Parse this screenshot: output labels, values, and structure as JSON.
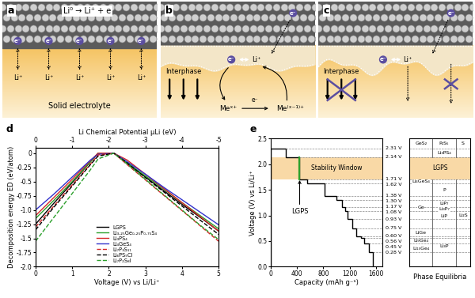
{
  "diagrams": [
    {
      "panel": "a",
      "equation": "Li⁰ → Li⁺ + e",
      "electrons": [
        "e⁻",
        "e⁻",
        "e⁻",
        "e⁻",
        "e⁻"
      ],
      "ions": [
        "Li⁺",
        "Li⁺",
        "Li⁺",
        "Li⁺",
        "Li⁺"
      ],
      "electrolyte": "Solid electrolyte"
    },
    {
      "panel": "b",
      "electron_in": "e⁻",
      "interphase": "Interphase",
      "interphase_electron": "e⁻",
      "interphase_ion": "Li⁺",
      "reaction": {
        "reactant": "Meˣ⁺",
        "electron": "e⁻",
        "product": "Me⁽ˣ⁻¹⁾⁺"
      }
    },
    {
      "panel": "c",
      "electron_in": "e⁻",
      "interphase": "Interphase",
      "interphase_electron": "e⁻",
      "interphase_ion": "Li⁺"
    }
  ],
  "chart_data": [
    {
      "panel": "d",
      "type": "line",
      "xlabel": "Voltage (V) vs Li/Li⁺",
      "ylabel": "Decomposition energy ED (eV/atom)",
      "x2label": "Li Chemical Potential μLi (eV)",
      "x": [
        0,
        0.5,
        1,
        1.5,
        1.71,
        2.14,
        2.5,
        3,
        3.5,
        4,
        4.5,
        5
      ],
      "xlim": [
        0,
        5
      ],
      "xticks": [
        0,
        1,
        2,
        3,
        4,
        5
      ],
      "x2lim": [
        0,
        -5
      ],
      "x2ticks": [
        0,
        -1,
        -2,
        -3,
        -4,
        -5
      ],
      "ylim": [
        -2.0,
        0.1
      ],
      "yticks": [
        0,
        -0.25,
        -0.5,
        -0.75,
        -1.0,
        -1.25,
        -1.5,
        -1.75,
        -2.0
      ],
      "legend": "lower center",
      "series": [
        {
          "name": "LGPS",
          "color": "#000000",
          "line_style": "solid",
          "values": [
            -1.25,
            -0.88,
            -0.52,
            -0.15,
            0,
            0,
            -0.18,
            -0.42,
            -0.66,
            -0.9,
            -1.13,
            -1.37
          ]
        },
        {
          "name": "Li₃.₂₅Ge₀.₂₅P₀.₇₅S₄",
          "color": "#2ca02c",
          "line_style": "solid",
          "values": [
            -1.15,
            -0.83,
            -0.5,
            -0.15,
            0,
            0,
            -0.17,
            -0.4,
            -0.63,
            -0.87,
            -1.1,
            -1.33
          ]
        },
        {
          "name": "Li₃PS₄",
          "color": "#d62728",
          "line_style": "solid",
          "values": [
            -1.1,
            -0.78,
            -0.46,
            -0.13,
            0,
            0,
            -0.12,
            -0.37,
            -0.62,
            -0.87,
            -1.12,
            -1.37
          ]
        },
        {
          "name": "Li₄GeS₄",
          "color": "#3333cc",
          "line_style": "solid",
          "values": [
            -1.0,
            -0.72,
            -0.42,
            -0.12,
            -0.02,
            0,
            -0.15,
            -0.37,
            -0.6,
            -0.82,
            -1.04,
            -1.26
          ]
        },
        {
          "name": "Li₇P₃S₁₁",
          "color": "#d62728",
          "line_style": "dashed",
          "values": [
            -1.3,
            -0.93,
            -0.56,
            -0.19,
            -0.03,
            0,
            -0.2,
            -0.47,
            -0.74,
            -1.01,
            -1.28,
            -1.55
          ]
        },
        {
          "name": "Li₆PS₅Cl",
          "color": "#000000",
          "line_style": "dashed",
          "values": [
            -1.35,
            -0.95,
            -0.58,
            -0.2,
            -0.05,
            0,
            -0.17,
            -0.43,
            -0.68,
            -0.93,
            -1.18,
            -1.43
          ]
        },
        {
          "name": "Li₇P₂S₈I",
          "color": "#2ca02c",
          "line_style": "dashed",
          "values": [
            -1.55,
            -1.13,
            -0.71,
            -0.29,
            -0.1,
            0,
            -0.19,
            -0.46,
            -0.73,
            -1.0,
            -1.27,
            -1.52
          ]
        }
      ]
    },
    {
      "panel": "e",
      "type": "step",
      "xlabel": "Capacity (mAh g⁻¹)",
      "ylabel": "Voltage (V) vs Li/Li⁺",
      "edges": [
        0,
        230,
        440,
        560,
        820,
        1000,
        1080,
        1130,
        1170,
        1240,
        1300,
        1370,
        1420,
        1500,
        1560
      ],
      "values": [
        2.31,
        2.14,
        1.71,
        1.62,
        1.38,
        1.3,
        1.17,
        1.08,
        0.93,
        0.75,
        0.6,
        0.56,
        0.45,
        0.28
      ],
      "value_labels": [
        "2.31 V",
        "2.14 V",
        "1.71 V",
        "1.62 V",
        "1.38 V",
        "1.30 V",
        "1.17 V",
        "1.08 V",
        "0.93 V",
        "0.75 V",
        "0.60 V",
        "0.56 V",
        "0.45 V",
        "0.28 V"
      ],
      "data_labels": true,
      "color": "#000000",
      "xlim": [
        0,
        1700
      ],
      "xticks": [
        0,
        400,
        800,
        1200,
        1600
      ],
      "ylim": [
        0,
        2.5
      ],
      "yticks": [
        {
          "value": 0,
          "label": "0.0"
        },
        0.5,
        {
          "value": 1,
          "label": "1.0"
        },
        1.5,
        {
          "value": 2,
          "label": "2.0"
        },
        2.5
      ],
      "stability_window": [
        1.71,
        2.14
      ],
      "stability_window_label": "Stability Window",
      "lgps_capacity": 440,
      "lgps_label": "LGPS",
      "phase_equilibria": {
        "title": "Phase Equilibria",
        "band_label": "LGPS",
        "columns": [
          [
            {
              "label": "GeS₂",
              "voltage": 2.4
            },
            {
              "label": "Li₄GeS₄",
              "voltage": 1.66
            },
            {
              "label": "Ge",
              "voltage": 1.15
            },
            {
              "label": "LiGe",
              "voltage": 0.66
            },
            {
              "label": "Li₉Ge₄",
              "voltage": 0.5
            },
            {
              "label": "Li₁₅Ge₄",
              "voltage": 0.36
            }
          ],
          [
            {
              "label": "P₂S₅",
              "voltage": 2.4
            },
            {
              "label": "Li₃PS₄",
              "voltage": 2.22
            },
            {
              "label": "P",
              "voltage": 1.5
            },
            {
              "label": "LiP₇",
              "voltage": 1.24
            },
            {
              "label": "Li₃P₇",
              "voltage": 1.12
            },
            {
              "label": "LiP",
              "voltage": 0.99
            },
            {
              "label": "Li₃P",
              "voltage": 0.4
            }
          ],
          [
            {
              "label": "S",
              "voltage": 2.4
            },
            {
              "label": "Li₂S",
              "voltage": 1.0
            }
          ]
        ]
      }
    }
  ]
}
